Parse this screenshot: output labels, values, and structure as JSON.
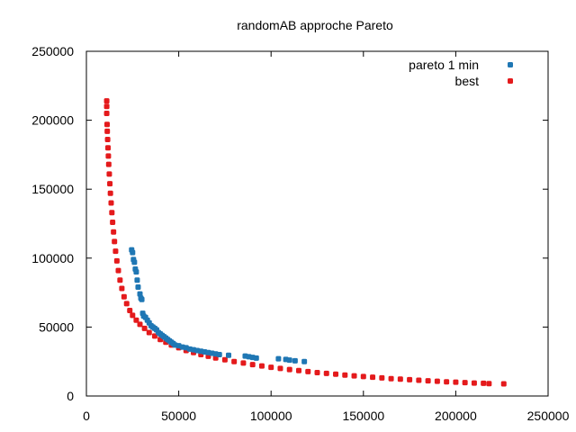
{
  "chart_data": {
    "type": "scatter",
    "title": "randomAB approche Pareto",
    "xlabel": "",
    "ylabel": "",
    "xlim": [
      0,
      250000
    ],
    "ylim": [
      0,
      250000
    ],
    "xticks": [
      0,
      50000,
      100000,
      150000,
      200000,
      250000
    ],
    "yticks": [
      0,
      50000,
      100000,
      150000,
      200000,
      250000
    ],
    "xtick_labels": [
      "0",
      "50000",
      "100000",
      "150000",
      "200000",
      "250000"
    ],
    "ytick_labels": [
      "0",
      "50000",
      "100000",
      "150000",
      "200000",
      "250000"
    ],
    "grid": false,
    "legend_position": "top-right",
    "series": [
      {
        "name": "pareto 1 min",
        "color": "#1f77b4",
        "points": [
          [
            24500,
            106000
          ],
          [
            25000,
            104000
          ],
          [
            25500,
            99000
          ],
          [
            26000,
            97000
          ],
          [
            26500,
            92000
          ],
          [
            27000,
            90000
          ],
          [
            27500,
            84000
          ],
          [
            28000,
            79000
          ],
          [
            29000,
            74000
          ],
          [
            29500,
            71000
          ],
          [
            30000,
            70000
          ],
          [
            30500,
            60000
          ],
          [
            31000,
            58000
          ],
          [
            32000,
            57000
          ],
          [
            33000,
            55000
          ],
          [
            34000,
            53000
          ],
          [
            35000,
            51000
          ],
          [
            36000,
            50000
          ],
          [
            37000,
            49000
          ],
          [
            38000,
            48000
          ],
          [
            39000,
            46000
          ],
          [
            40000,
            45000
          ],
          [
            41000,
            44000
          ],
          [
            42000,
            43000
          ],
          [
            43000,
            42000
          ],
          [
            44000,
            41000
          ],
          [
            45000,
            40000
          ],
          [
            46000,
            39000
          ],
          [
            47000,
            38000
          ],
          [
            48000,
            37000
          ],
          [
            50000,
            36500
          ],
          [
            52000,
            35500
          ],
          [
            54000,
            35000
          ],
          [
            56000,
            34000
          ],
          [
            58000,
            33500
          ],
          [
            60000,
            33000
          ],
          [
            62000,
            32500
          ],
          [
            64000,
            32000
          ],
          [
            66000,
            31500
          ],
          [
            68000,
            31000
          ],
          [
            70000,
            30500
          ],
          [
            72000,
            30000
          ],
          [
            77000,
            29500
          ],
          [
            86000,
            29000
          ],
          [
            88000,
            28500
          ],
          [
            90000,
            28000
          ],
          [
            92000,
            27500
          ],
          [
            104000,
            27000
          ],
          [
            108000,
            26500
          ],
          [
            110000,
            26000
          ],
          [
            113000,
            25500
          ],
          [
            118000,
            25000
          ]
        ]
      },
      {
        "name": "best",
        "color": "#e41a1c",
        "points": [
          [
            11000,
            214000
          ],
          [
            11000,
            210000
          ],
          [
            11000,
            205000
          ],
          [
            11200,
            197000
          ],
          [
            11300,
            192000
          ],
          [
            11500,
            186000
          ],
          [
            11700,
            180000
          ],
          [
            11900,
            174000
          ],
          [
            12100,
            168000
          ],
          [
            12400,
            161000
          ],
          [
            12700,
            154000
          ],
          [
            13000,
            147000
          ],
          [
            13400,
            140000
          ],
          [
            13800,
            133000
          ],
          [
            14200,
            126000
          ],
          [
            14700,
            119000
          ],
          [
            15200,
            112000
          ],
          [
            15800,
            105000
          ],
          [
            16500,
            98000
          ],
          [
            17300,
            91000
          ],
          [
            18200,
            84000
          ],
          [
            19200,
            78000
          ],
          [
            20400,
            72000
          ],
          [
            21800,
            67000
          ],
          [
            23500,
            62000
          ],
          [
            25000,
            58500
          ],
          [
            27000,
            55000
          ],
          [
            29000,
            52000
          ],
          [
            31500,
            49000
          ],
          [
            34000,
            46000
          ],
          [
            37000,
            43500
          ],
          [
            40000,
            41000
          ],
          [
            43000,
            39000
          ],
          [
            46000,
            37000
          ],
          [
            50000,
            35000
          ],
          [
            54000,
            33000
          ],
          [
            58000,
            31500
          ],
          [
            62000,
            30000
          ],
          [
            66000,
            28800
          ],
          [
            70000,
            27600
          ],
          [
            75000,
            26300
          ],
          [
            80000,
            25000
          ],
          [
            85000,
            23900
          ],
          [
            90000,
            22800
          ],
          [
            95000,
            21800
          ],
          [
            100000,
            20800
          ],
          [
            105000,
            20000
          ],
          [
            110000,
            19200
          ],
          [
            115000,
            18400
          ],
          [
            120000,
            17700
          ],
          [
            125000,
            17000
          ],
          [
            130000,
            16400
          ],
          [
            135000,
            15800
          ],
          [
            140000,
            15200
          ],
          [
            145000,
            14600
          ],
          [
            150000,
            14100
          ],
          [
            155000,
            13600
          ],
          [
            160000,
            13100
          ],
          [
            165000,
            12600
          ],
          [
            170000,
            12200
          ],
          [
            175000,
            11800
          ],
          [
            180000,
            11400
          ],
          [
            185000,
            11000
          ],
          [
            190000,
            10700
          ],
          [
            195000,
            10300
          ],
          [
            200000,
            10000
          ],
          [
            205000,
            9700
          ],
          [
            210000,
            9400
          ],
          [
            215000,
            9200
          ],
          [
            218000,
            9000
          ],
          [
            226000,
            8800
          ]
        ]
      }
    ]
  }
}
